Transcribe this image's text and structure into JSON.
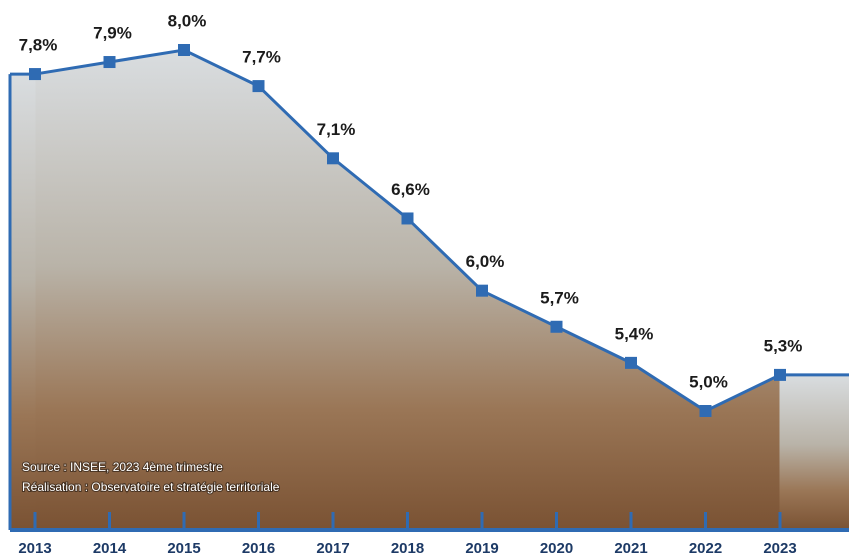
{
  "chart_data": {
    "type": "line",
    "categories": [
      "2013",
      "2014",
      "2015",
      "2016",
      "2017",
      "2018",
      "2019",
      "2020",
      "2021",
      "2022",
      "2023"
    ],
    "values": [
      7.8,
      7.9,
      8.0,
      7.7,
      7.1,
      6.6,
      6.0,
      5.7,
      5.4,
      5.0,
      5.3
    ],
    "value_labels": [
      "7,8%",
      "7,9%",
      "8,0%",
      "7,7%",
      "7,1%",
      "6,6%",
      "6,0%",
      "5,7%",
      "5,4%",
      "5,0%",
      "5,3%"
    ],
    "color": "#2f6bb3",
    "source": "Source : INSEE, 2023 4ème trimestre",
    "credit": "Réalisation : Observatoire et stratégie territoriale"
  }
}
